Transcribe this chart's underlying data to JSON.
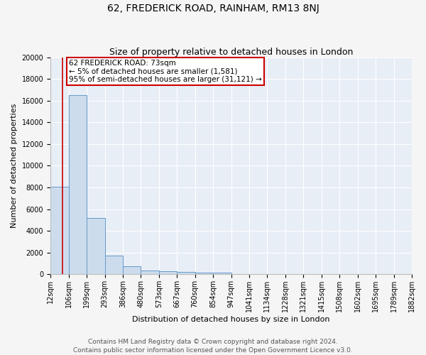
{
  "title": "62, FREDERICK ROAD, RAINHAM, RM13 8NJ",
  "subtitle": "Size of property relative to detached houses in London",
  "xlabel": "Distribution of detached houses by size in London",
  "ylabel": "Number of detached properties",
  "bin_labels": [
    "12sqm",
    "106sqm",
    "199sqm",
    "293sqm",
    "386sqm",
    "480sqm",
    "573sqm",
    "667sqm",
    "760sqm",
    "854sqm",
    "947sqm",
    "1041sqm",
    "1134sqm",
    "1228sqm",
    "1321sqm",
    "1415sqm",
    "1508sqm",
    "1602sqm",
    "1695sqm",
    "1789sqm",
    "1882sqm"
  ],
  "bar_heights": [
    8050,
    16500,
    5200,
    1750,
    750,
    350,
    250,
    200,
    150,
    150,
    0,
    0,
    0,
    0,
    0,
    0,
    0,
    0,
    0,
    0
  ],
  "bin_edges": [
    12,
    106,
    199,
    293,
    386,
    480,
    573,
    667,
    760,
    854,
    947,
    1041,
    1134,
    1228,
    1321,
    1415,
    1508,
    1602,
    1695,
    1789,
    1882
  ],
  "bar_color": "#ccdcec",
  "bar_edge_color": "#6699cc",
  "background_color": "#e8eef6",
  "fig_background_color": "#f5f5f5",
  "red_line_x": 73,
  "annotation_line1": "62 FREDERICK ROAD: 73sqm",
  "annotation_line2": "← 5% of detached houses are smaller (1,581)",
  "annotation_line3": "95% of semi-detached houses are larger (31,121) →",
  "annotation_box_color": "#ffffff",
  "annotation_box_edge_color": "#cc0000",
  "ylim": [
    0,
    20000
  ],
  "yticks": [
    0,
    2000,
    4000,
    6000,
    8000,
    10000,
    12000,
    14000,
    16000,
    18000,
    20000
  ],
  "footer_line1": "Contains HM Land Registry data © Crown copyright and database right 2024.",
  "footer_line2": "Contains public sector information licensed under the Open Government Licence v3.0.",
  "title_fontsize": 10,
  "subtitle_fontsize": 9,
  "axis_label_fontsize": 8,
  "tick_fontsize": 7,
  "annotation_fontsize": 7.5,
  "footer_fontsize": 6.5
}
